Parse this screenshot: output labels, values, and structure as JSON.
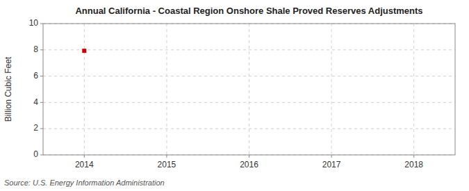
{
  "chart_data": {
    "type": "scatter",
    "title": "Annual California - Coastal Region Onshore Shale Proved Reserves Adjustments",
    "ylabel": "Billion Cubic Feet",
    "annotations": [
      "Source: U.S. Energy Information Administration"
    ],
    "x": [
      2014
    ],
    "values": [
      7.93
    ],
    "color": "#CC0000",
    "marker": "square",
    "xlim": [
      2013.5,
      2018.5
    ],
    "ylim": [
      0,
      10
    ],
    "xticks": [
      2014,
      2015,
      2016,
      2017,
      2018
    ],
    "yticks": [
      0,
      2,
      4,
      6,
      8,
      10
    ],
    "grid": true
  }
}
